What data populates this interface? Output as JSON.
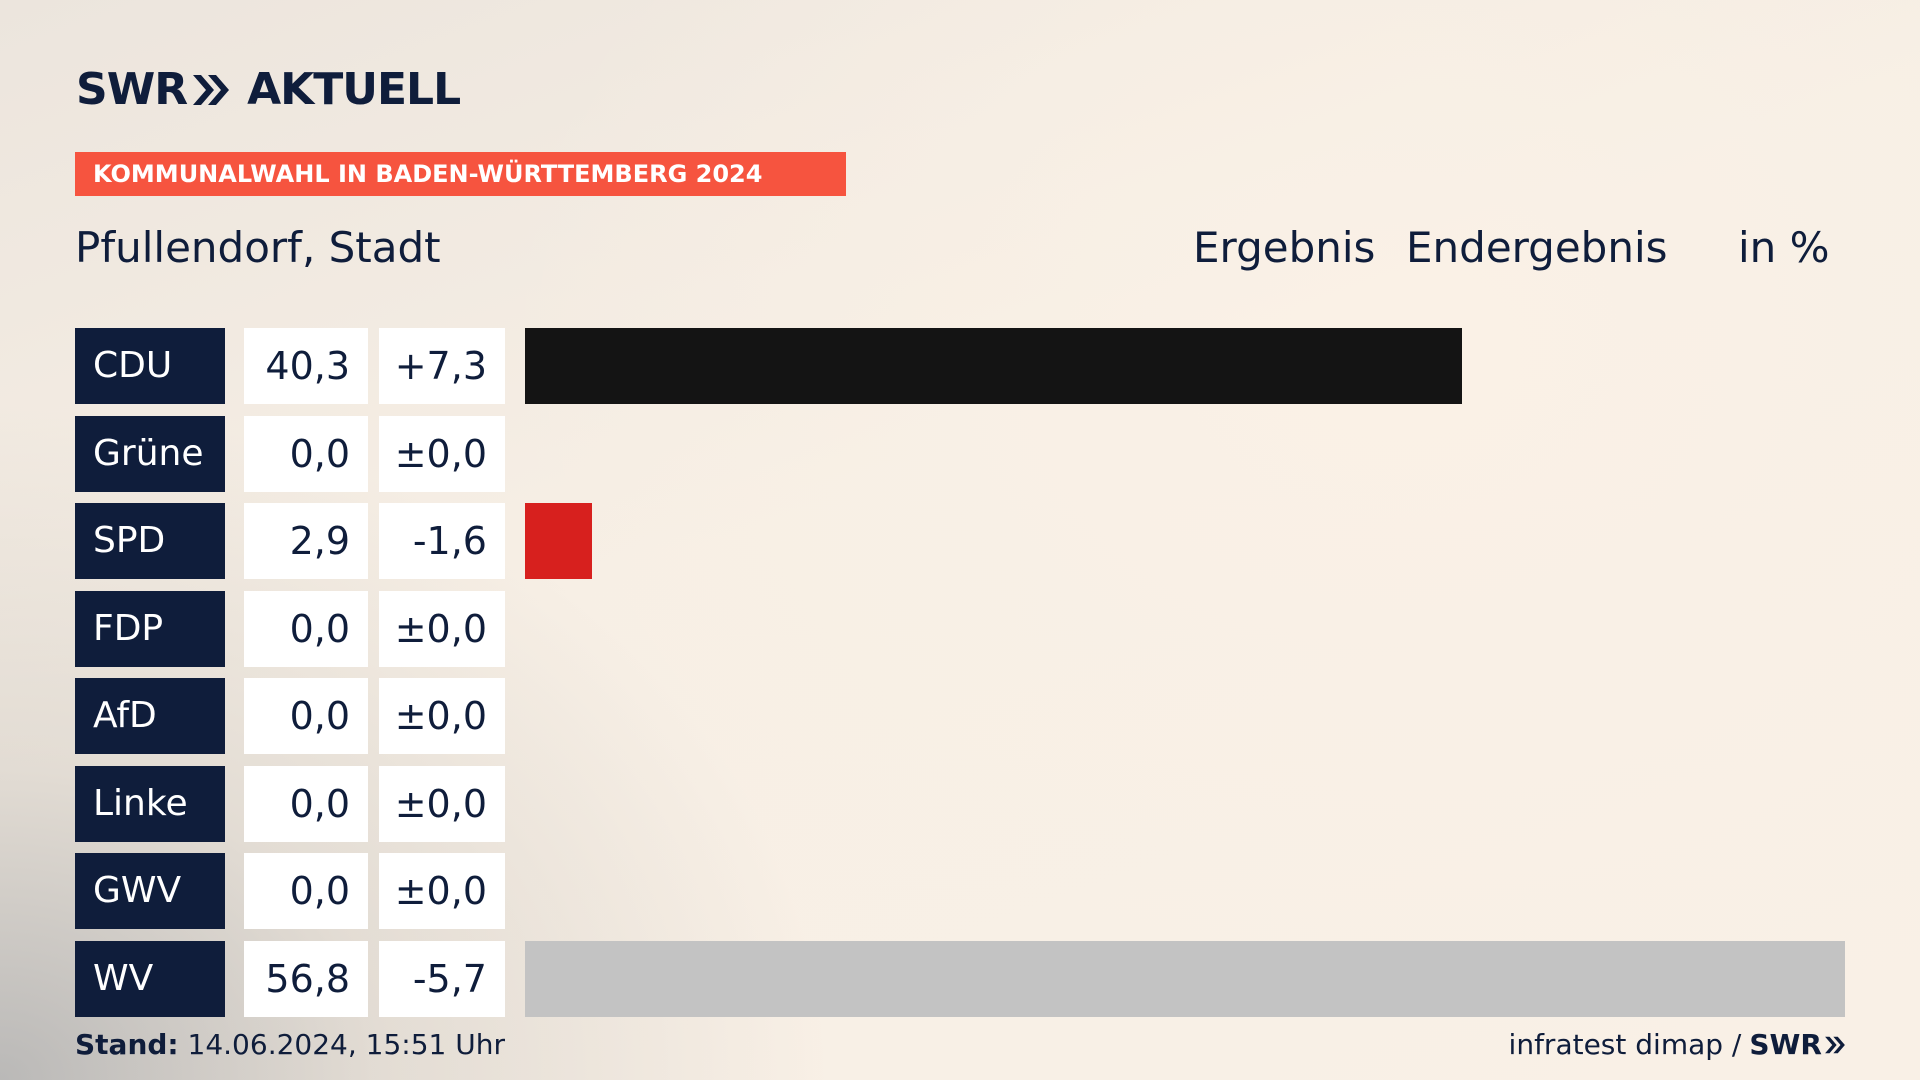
{
  "brand": {
    "swr": "SWR",
    "aktuell": "AKTUELL",
    "color": "#0f1d3b"
  },
  "banner": {
    "text": "KOMMUNALWAHL IN BADEN-WÜRTTEMBERG 2024",
    "color": "#f6543f"
  },
  "header": {
    "place": "Pfullendorf, Stadt",
    "ergebnis": "Ergebnis",
    "endergebnis": "Endergebnis",
    "unit": "in %"
  },
  "chart_data": {
    "type": "bar",
    "orientation": "horizontal",
    "categories": [
      "CDU",
      "Grüne",
      "SPD",
      "FDP",
      "AfD",
      "Linke",
      "GWV",
      "WV"
    ],
    "values": [
      40.3,
      0.0,
      2.9,
      0.0,
      0.0,
      0.0,
      0.0,
      56.8
    ],
    "value_labels": [
      "40,3",
      "0,0",
      "2,9",
      "0,0",
      "0,0",
      "0,0",
      "0,0",
      "56,8"
    ],
    "change_labels": [
      "+7,3",
      "±0,0",
      "-1,6",
      "±0,0",
      "±0,0",
      "±0,0",
      "±0,0",
      "-5,7"
    ],
    "changes": [
      7.3,
      0.0,
      -1.6,
      0.0,
      0.0,
      0.0,
      0.0,
      -5.7
    ],
    "colors": [
      "#141414",
      "#4ba22d",
      "#d7201e",
      "#f2d51b",
      "#1b9fe0",
      "#b8237a",
      "#c3c3c3",
      "#c3c3c3"
    ],
    "xlim": [
      0,
      56.8
    ]
  },
  "footer": {
    "stand_label": "Stand:",
    "stand_value": "14.06.2024, 15:51 Uhr",
    "source": "infratest dimap /",
    "source_brand": "SWR"
  }
}
